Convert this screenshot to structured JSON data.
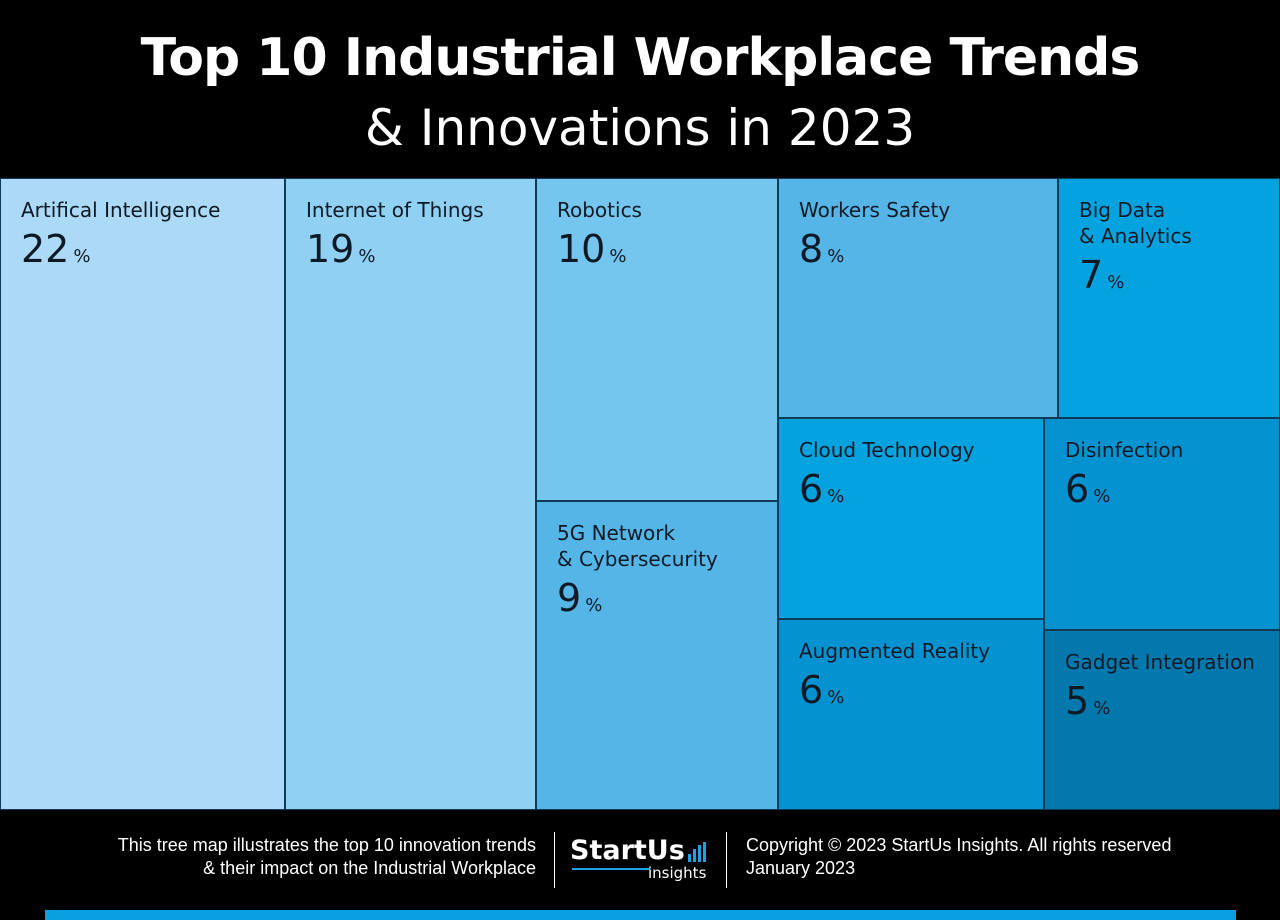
{
  "title": "Top 10 Industrial Workplace Trends",
  "subtitle": "& Innovations in 2023",
  "chart_data": {
    "type": "treemap",
    "unit": "%",
    "items": [
      {
        "label": "Artifical Intelligence",
        "value": 22,
        "color": "#acd9f6"
      },
      {
        "label": "Internet of Things",
        "value": 19,
        "color": "#90d0f2"
      },
      {
        "label": "Robotics",
        "value": 10,
        "color": "#74c6ee"
      },
      {
        "label": "5G Network\n& Cybersecurity",
        "value": 9,
        "color": "#55b5e6"
      },
      {
        "label": "Workers Safety",
        "value": 8,
        "color": "#55b5e6"
      },
      {
        "label": "Big Data\n& Analytics",
        "value": 7,
        "color": "#04a2de"
      },
      {
        "label": "Cloud Technology",
        "value": 6,
        "color": "#04a2de"
      },
      {
        "label": "Disinfection",
        "value": 6,
        "color": "#0592d1"
      },
      {
        "label": "Augmented Reality",
        "value": 6,
        "color": "#0592d1"
      },
      {
        "label": "Gadget Integration",
        "value": 5,
        "color": "#0278ac"
      }
    ]
  },
  "footer": {
    "description_line1": "This tree map illustrates the top 10 innovation trends",
    "description_line2": "& their impact on the Industrial Workplace",
    "logo_word": "StartUs",
    "logo_sub": "insights",
    "copyright": "Copyright © 2023 StartUs Insights. All rights reserved",
    "date": "January 2023",
    "accent_color": "#0aa0e0"
  }
}
